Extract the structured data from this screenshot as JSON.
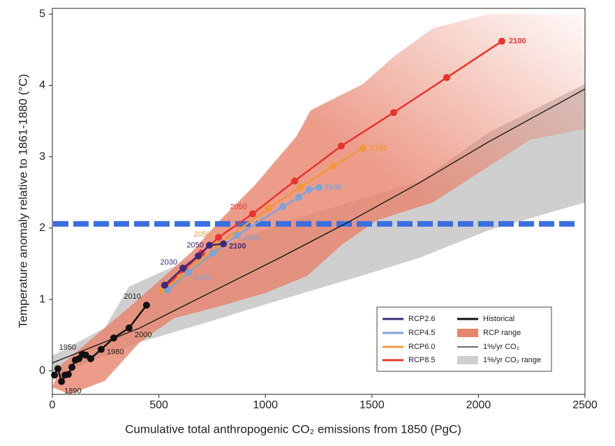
{
  "chart_data": {
    "type": "line",
    "xlabel": "Cumulative total anthropogenic CO₂ emissions from 1850 (PgC)",
    "ylabel": "Temperature anomaly relative to 1861-1880 (°C)",
    "xlim": [
      0,
      2500
    ],
    "ylim": [
      -0.33,
      5.08
    ],
    "xticks": [
      0,
      500,
      1000,
      1500,
      2000,
      2500
    ],
    "yticks": [
      0,
      1,
      2,
      3,
      4,
      5
    ],
    "series": [
      {
        "name": "Historical",
        "color": "#111111",
        "markers": true,
        "x": [
          10,
          26,
          43,
          59,
          75,
          92,
          108,
          125,
          141,
          157,
          180,
          229,
          288,
          360,
          442
        ],
        "values": [
          -0.06,
          0.03,
          -0.15,
          -0.06,
          -0.05,
          0.05,
          0.15,
          0.17,
          0.23,
          0.22,
          0.17,
          0.3,
          0.46,
          0.6,
          0.92
        ],
        "labels": [
          null,
          null,
          "1890",
          null,
          null,
          null,
          null,
          "1950",
          null,
          null,
          null,
          "1980",
          null,
          "2000",
          "2010"
        ]
      },
      {
        "name": "1%/yr CO₂",
        "color": "#111111",
        "markers": false,
        "x": [
          0,
          410,
          737,
          1065,
          1393,
          1720,
          2048,
          2500
        ],
        "values": [
          0.11,
          0.6,
          1.09,
          1.58,
          2.09,
          2.63,
          3.21,
          3.95
        ]
      },
      {
        "name": "RCP8.5",
        "color": "#e8342c",
        "markers": true,
        "x": [
          527,
          620,
          700,
          780,
          940,
          1137,
          1356,
          1602,
          1851,
          2110
        ],
        "values": [
          1.17,
          1.42,
          1.65,
          1.87,
          2.2,
          2.66,
          3.15,
          3.62,
          4.11,
          4.62
        ],
        "labels": [
          null,
          null,
          null,
          null,
          "2050",
          null,
          null,
          null,
          null,
          "2100"
        ]
      },
      {
        "name": "RCP6.0",
        "color": "#f0983a",
        "markers": true,
        "x": [
          518,
          600,
          688,
          777,
          1016,
          1163,
          1317,
          1458
        ],
        "values": [
          1.13,
          1.31,
          1.53,
          1.77,
          2.28,
          2.57,
          2.87,
          3.12
        ],
        "labels": [
          null,
          null,
          null,
          "2050",
          null,
          null,
          null,
          "2100"
        ]
      },
      {
        "name": "RCP4.5",
        "color": "#7ea3d8",
        "markers": true,
        "x": [
          540,
          639,
          754,
          868,
          1081,
          1157,
          1206,
          1252
        ],
        "values": [
          1.13,
          1.38,
          1.65,
          1.9,
          2.3,
          2.43,
          2.54,
          2.57
        ],
        "labels": [
          null,
          "2030",
          null,
          "2050",
          null,
          null,
          null,
          "2100"
        ]
      },
      {
        "name": "RCP2.6",
        "color": "#3d2a7a",
        "markers": true,
        "x": [
          527,
          613,
          685,
          737,
          803
        ],
        "values": [
          1.2,
          1.44,
          1.61,
          1.76,
          1.78
        ],
        "labels": [
          null,
          "2030",
          null,
          "2050",
          "2100"
        ]
      }
    ],
    "ranges": [
      {
        "name": "1%/yr CO₂ range",
        "color": "#cfcfcf",
        "x": [
          0,
          246,
          360,
          508,
          737,
          1065,
          1393,
          1720,
          2048,
          2500,
          2500,
          2048,
          1720,
          1393,
          1065,
          737,
          410,
          82,
          0
        ],
        "values": [
          0.21,
          0.6,
          1.18,
          1.38,
          1.67,
          2.06,
          2.36,
          2.65,
          3.34,
          4.02,
          2.36,
          1.97,
          1.58,
          1.28,
          0.99,
          0.69,
          0.4,
          0.01,
          -0.09
        ]
      },
      {
        "name": "RCP range",
        "color": "#e8836c",
        "x": [
          43,
          213,
          360,
          508,
          655,
          803,
          950,
          1147,
          1212,
          1458,
          1605,
          1786,
          2048,
          2500,
          2500,
          2244,
          2015,
          1786,
          1524,
          1360,
          1196,
          999,
          770,
          573,
          410,
          246,
          82,
          0
        ],
        "values": [
          0.09,
          0.52,
          0.89,
          1.28,
          1.67,
          2.16,
          2.6,
          3.29,
          3.65,
          4.02,
          4.41,
          4.8,
          5.0,
          5.0,
          3.39,
          3.24,
          2.8,
          2.36,
          2.11,
          1.77,
          1.33,
          1.09,
          0.89,
          0.74,
          0.4,
          -0.14,
          -0.33,
          -0.23
        ]
      }
    ],
    "hline": {
      "value": 2.06,
      "color": "#3a6fe0"
    }
  }
}
